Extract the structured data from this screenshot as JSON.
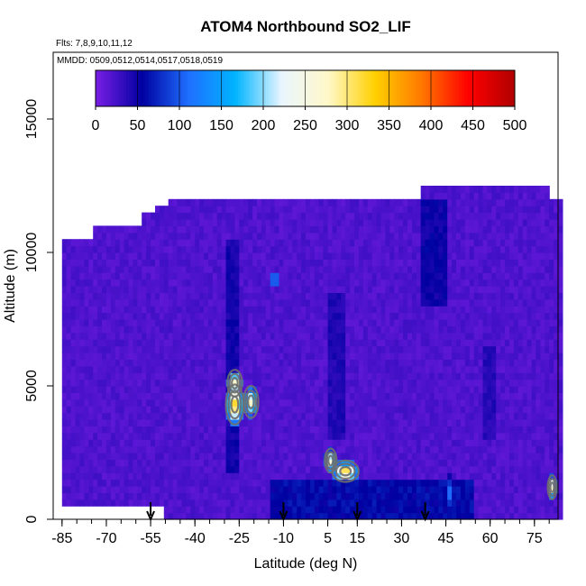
{
  "chart_data": {
    "type": "heatmap",
    "title": "ATOM4 Northbound SO2_LIF",
    "flights_label": "Flts: 7,8,9,10,11,12",
    "dates_label": "MMDD: 0509,0512,0514,0517,0518,0519",
    "xlabel": "Latitude (deg N)",
    "ylabel": "Altitude (m)",
    "xlim": [
      -88,
      83
    ],
    "ylim": [
      0,
      17500
    ],
    "x_ticks": [
      -85,
      -70,
      -55,
      -40,
      -25,
      -10,
      5,
      15,
      30,
      45,
      60,
      75
    ],
    "x_minor_step": 5,
    "y_ticks": [
      0,
      5000,
      10000,
      15000
    ],
    "colorbar": {
      "ticks": [
        0,
        50,
        100,
        150,
        200,
        250,
        300,
        350,
        400,
        450,
        500
      ],
      "range": [
        0,
        500
      ],
      "colors": [
        "#7a1ee6",
        "#0000a0",
        "#1f6fff",
        "#00b4ff",
        "#eaf6ff",
        "#fff8c8",
        "#ffd000",
        "#ff7800",
        "#ff0000",
        "#b00000"
      ]
    },
    "grid": false,
    "background_value": 20,
    "coverage": {
      "lat_start": -85,
      "lat_step": 1.5,
      "top_altitudes": [
        10500,
        10500,
        10500,
        10500,
        10500,
        10500,
        10500,
        10800,
        10800,
        10800,
        11000,
        11000,
        11000,
        11000,
        11000,
        11000,
        11000,
        11000,
        11300,
        11300,
        11300,
        11600,
        11600,
        11600,
        11800,
        11800,
        11800,
        11800,
        11800,
        11800,
        11800,
        11800,
        11800,
        11800,
        11800,
        11800,
        11800,
        11800,
        11800,
        11800,
        11800,
        11800,
        11800,
        11800,
        11800,
        11800,
        11800,
        11800,
        11800,
        11800,
        11800,
        11800,
        11800,
        11800,
        11800,
        11800,
        11800,
        11800,
        11800,
        11800,
        11800,
        11800,
        11800,
        11800,
        11800,
        11800,
        11800,
        11800,
        11800,
        11800,
        11800,
        11800,
        11800,
        11800,
        11800,
        11800,
        11800,
        11800,
        11800,
        11800,
        11800,
        12300,
        12300,
        12300,
        12300,
        12300,
        12300,
        12300,
        12300,
        12300,
        12300,
        12300,
        12300,
        12300,
        12300,
        12300,
        12300,
        12300,
        12300,
        12300,
        12300,
        12300,
        12300,
        12300,
        12300,
        12300,
        12300,
        12300,
        12300,
        12300,
        11800,
        11800,
        11800,
        11800,
        11800
      ]
    },
    "low_altitude_gap": {
      "lat_from": -85,
      "lat_to": -52,
      "top_altitude": 500
    },
    "hotspots": [
      {
        "lat": -26.5,
        "alt": 4300,
        "value": 400,
        "lat_width": 6,
        "alt_width": 1500
      },
      {
        "lat": -26.5,
        "alt": 5100,
        "value": 350,
        "lat_width": 5,
        "alt_width": 1000
      },
      {
        "lat": -21,
        "alt": 4400,
        "value": 300,
        "lat_width": 5,
        "alt_width": 1200
      },
      {
        "lat": -13,
        "alt": 9000,
        "value": 180,
        "lat_width": 3,
        "alt_width": 800
      },
      {
        "lat": 11,
        "alt": 1800,
        "value": 380,
        "lat_width": 9,
        "alt_width": 800
      },
      {
        "lat": 6,
        "alt": 2200,
        "value": 300,
        "lat_width": 4,
        "alt_width": 900
      },
      {
        "lat": 81,
        "alt": 1200,
        "value": 330,
        "lat_width": 3,
        "alt_width": 900
      },
      {
        "lat": 46,
        "alt": 1000,
        "value": 140,
        "lat_width": 2,
        "alt_width": 1500
      }
    ],
    "low_bands": [
      {
        "lat": -27.5,
        "alt_from": 1800,
        "alt_to": 10500,
        "value": 55,
        "lat_width": 4
      },
      {
        "lat": 41,
        "alt_from": 8000,
        "alt_to": 12000,
        "value": 60,
        "lat_width": 8
      },
      {
        "lat": 8,
        "alt_from": 3000,
        "alt_to": 8500,
        "value": 48,
        "lat_width": 5
      },
      {
        "lat": 60,
        "alt_from": 3000,
        "alt_to": 6500,
        "value": 45,
        "lat_width": 5
      },
      {
        "lat": 20,
        "alt_from": 0,
        "alt_to": 1500,
        "value": 70,
        "lat_width": 70
      }
    ],
    "ocean_crossings": [
      -55,
      -10,
      15,
      38
    ]
  }
}
